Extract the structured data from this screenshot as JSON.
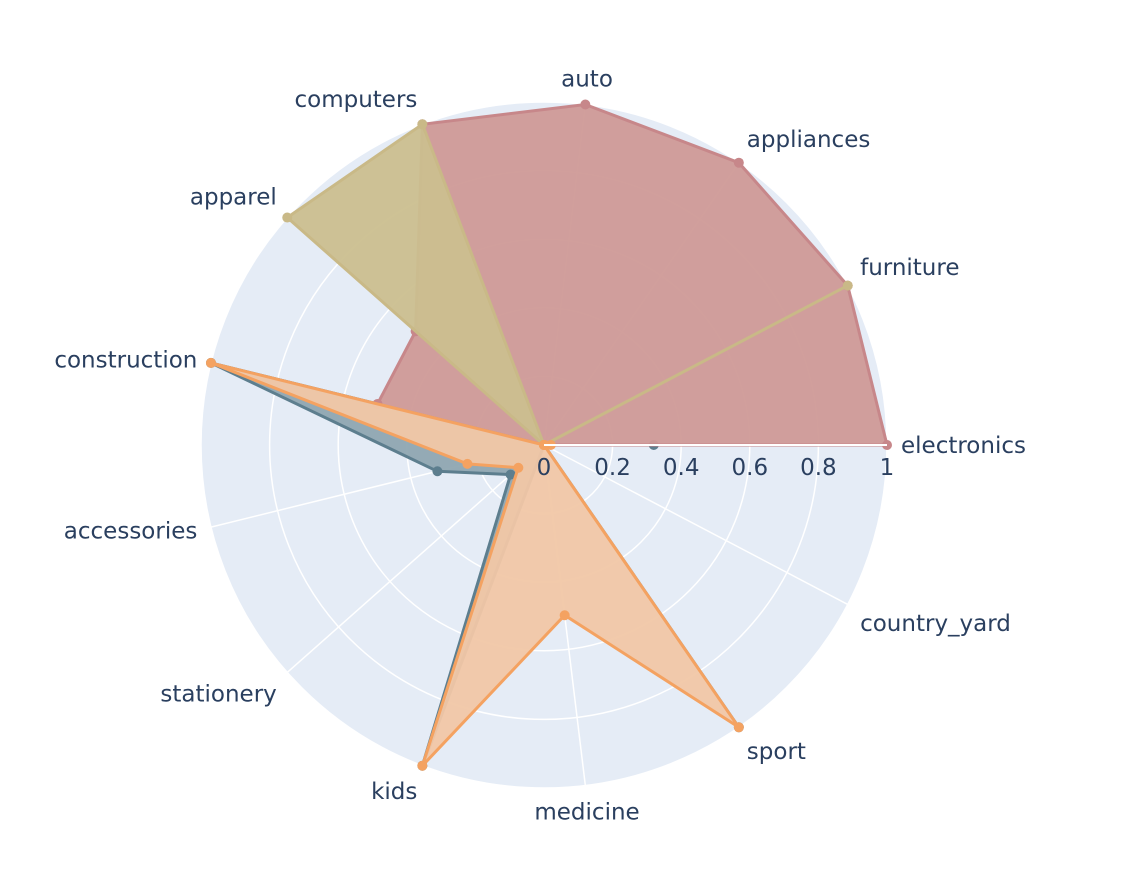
{
  "chart_data": {
    "type": "radar",
    "categories": [
      "electronics",
      "furniture",
      "appliances",
      "auto",
      "computers",
      "apparel",
      "construction",
      "accessories",
      "stationery",
      "kids",
      "medicine",
      "sport",
      "country_yard"
    ],
    "radial_range": [
      0,
      1
    ],
    "radial_ticks": [
      "0",
      "0.2",
      "0.4",
      "0.6",
      "0.8",
      "1"
    ],
    "grid": true,
    "series": [
      {
        "color": "#5d7e8e",
        "fill": "#8fa6b1",
        "values": [
          0.32,
          0.0,
          0.0,
          0.0,
          0.0,
          0.0,
          1.0,
          0.32,
          0.13,
          1.0,
          0.0,
          1.0,
          0.0
        ]
      },
      {
        "color": "#c7878a",
        "fill": "#cf9a97",
        "values": [
          1.0,
          1.0,
          1.0,
          1.0,
          1.0,
          0.5,
          0.5,
          0.0,
          0.0,
          0.0,
          0.0,
          0.0,
          0.0
        ]
      },
      {
        "color": "#c9b987",
        "fill": "#cbbf8f",
        "values": [
          0.0,
          1.0,
          0.0,
          0.0,
          1.0,
          1.0,
          0.0,
          0.0,
          0.0,
          0.0,
          0.0,
          0.0,
          0.0
        ]
      },
      {
        "color": "#f4a261",
        "fill": "#f1c7a7",
        "values": [
          0.02,
          0.0,
          0.0,
          0.0,
          0.0,
          0.0,
          1.0,
          0.23,
          0.1,
          1.0,
          0.5,
          1.0,
          0.0
        ]
      }
    ]
  }
}
